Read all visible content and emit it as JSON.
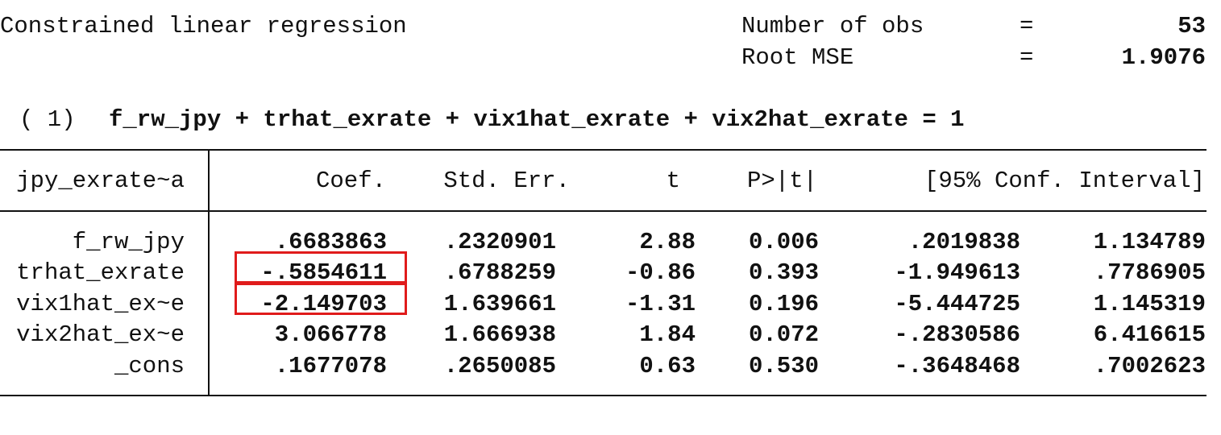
{
  "summary": {
    "title": "Constrained linear regression",
    "stats": [
      {
        "label": "Number of obs",
        "eq": "=",
        "value": "53"
      },
      {
        "label": "Root MSE",
        "eq": "=",
        "value": "1.9076"
      }
    ]
  },
  "constraint": {
    "label": "( 1)",
    "expr": "f_rw_jpy + trhat_exrate + vix1hat_exrate + vix2hat_exrate = 1"
  },
  "table": {
    "depvar": "jpy_exrate~a",
    "headers": [
      "Coef.",
      "Std. Err.",
      "t",
      "P>|t|",
      "[95% Conf. Interval]"
    ],
    "rows": [
      {
        "name": "f_rw_jpy",
        "coef": ".6683863",
        "se": ".2320901",
        "t": "2.88",
        "p": "0.006",
        "lo": ".2019838",
        "hi": "1.134789",
        "highlight": false
      },
      {
        "name": "trhat_exrate",
        "coef": "-.5854611",
        "se": ".6788259",
        "t": "-0.86",
        "p": "0.393",
        "lo": "-1.949613",
        "hi": ".7786905",
        "highlight": true
      },
      {
        "name": "vix1hat_ex~e",
        "coef": "-2.149703",
        "se": "1.639661",
        "t": "-1.31",
        "p": "0.196",
        "lo": "-5.444725",
        "hi": "1.145319",
        "highlight": true
      },
      {
        "name": "vix2hat_ex~e",
        "coef": "3.066778",
        "se": "1.666938",
        "t": "1.84",
        "p": "0.072",
        "lo": "-.2830586",
        "hi": "6.416615",
        "highlight": false
      },
      {
        "name": "_cons",
        "coef": ".1677078",
        "se": ".2650085",
        "t": "0.63",
        "p": "0.530",
        "lo": "-.3648468",
        "hi": ".7002623",
        "highlight": false
      }
    ]
  },
  "colors": {
    "highlight_box": "#e01b1b",
    "text": "#111111",
    "background": "#ffffff"
  }
}
